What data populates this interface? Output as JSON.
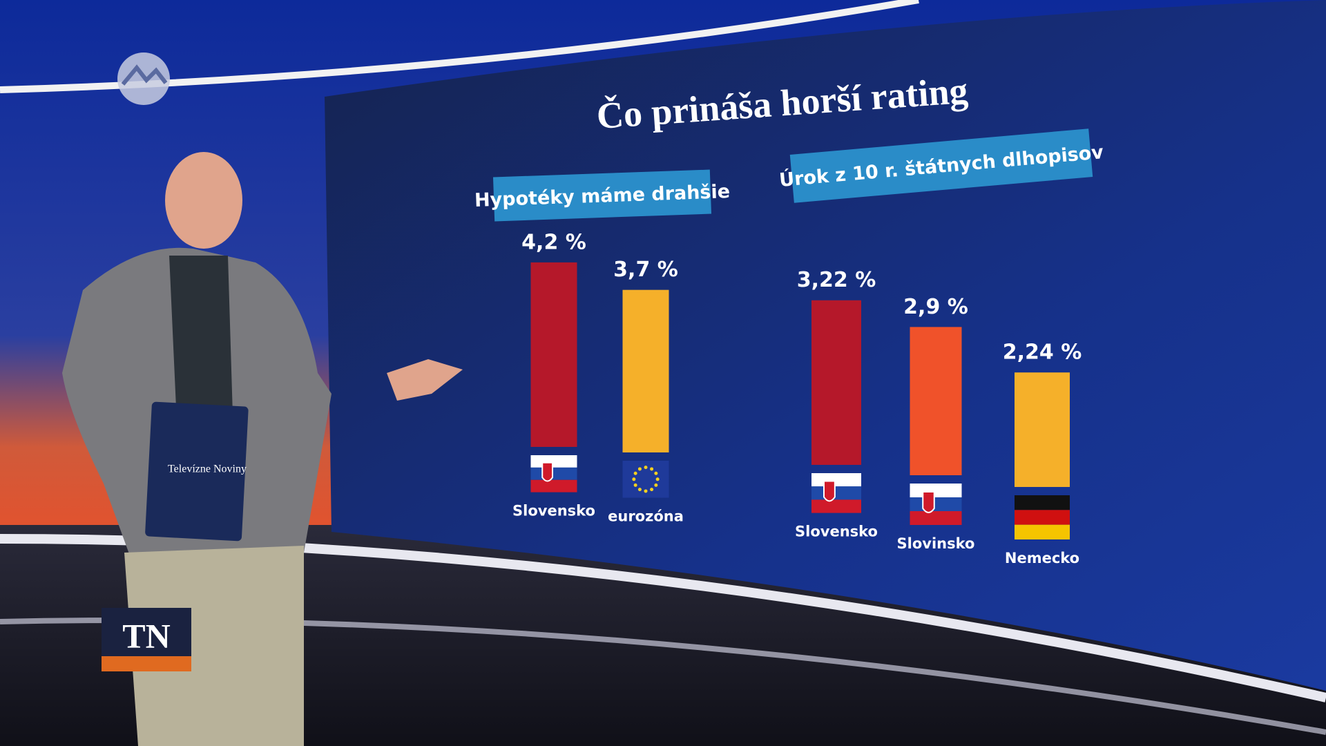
{
  "title": "Čo prináša horší rating",
  "logo": "TN",
  "clipboard": "Televízne Noviny",
  "chart_data": [
    {
      "type": "bar",
      "title": "Hypotéky máme drahšie",
      "categories": [
        "Slovensko",
        "eurozóna"
      ],
      "values": [
        4.2,
        3.7
      ],
      "value_labels": [
        "4,2 %",
        "3,7 %"
      ],
      "colors": [
        "#b5182a",
        "#f5b02a"
      ]
    },
    {
      "type": "bar",
      "title": "Úrok z 10 r. štátnych dlhopisov",
      "categories": [
        "Slovensko",
        "Slovinsko",
        "Nemecko"
      ],
      "values": [
        3.22,
        2.9,
        2.24
      ],
      "value_labels": [
        "3,22 %",
        "2,9 %",
        "2,24 %"
      ],
      "colors": [
        "#b5182a",
        "#f0522a",
        "#f5b02a"
      ]
    }
  ]
}
